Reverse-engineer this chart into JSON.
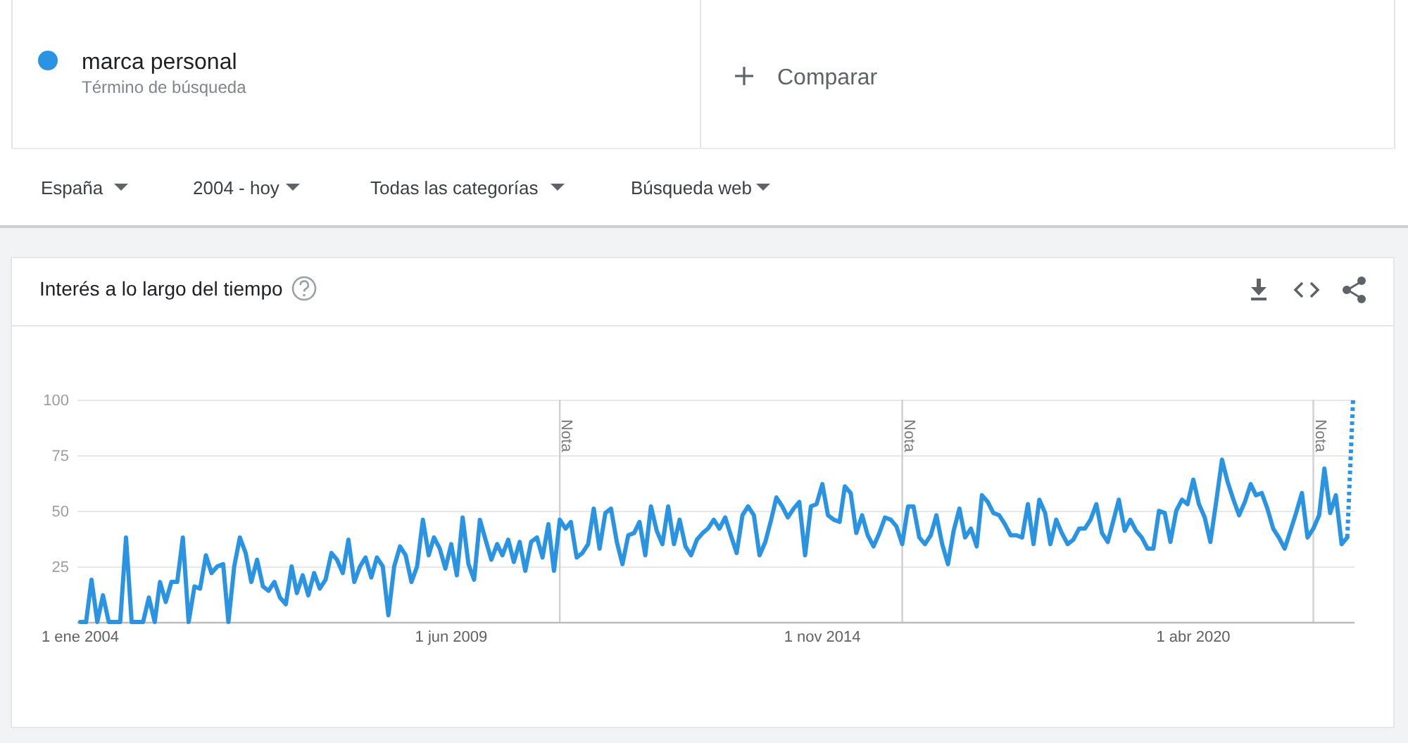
{
  "chart_data": {
    "type": "line",
    "title": "Interés a lo largo del tiempo",
    "annotations": [
      "Término de búsqueda",
      "Comparar",
      "España",
      "2004 - hoy",
      "Todas las categorías",
      "Búsqueda web"
    ],
    "x": [
      "2004-01",
      "2004-02",
      "2004-03",
      "2004-04",
      "2004-05",
      "2004-06",
      "2004-07",
      "2004-08",
      "2004-09",
      "2004-10",
      "2004-11",
      "2004-12",
      "2005-01",
      "2005-02",
      "2005-03",
      "2005-04",
      "2005-05",
      "2005-06",
      "2005-07",
      "2005-08",
      "2005-09",
      "2005-10",
      "2005-11",
      "2005-12",
      "2006-01",
      "2006-02",
      "2006-03",
      "2006-04",
      "2006-05",
      "2006-06",
      "2006-07",
      "2006-08",
      "2006-09",
      "2006-10",
      "2006-11",
      "2006-12",
      "2007-01",
      "2007-02",
      "2007-03",
      "2007-04",
      "2007-05",
      "2007-06",
      "2007-07",
      "2007-08",
      "2007-09",
      "2007-10",
      "2007-11",
      "2007-12",
      "2008-01",
      "2008-02",
      "2008-03",
      "2008-04",
      "2008-05",
      "2008-06",
      "2008-07",
      "2008-08",
      "2008-09",
      "2008-10",
      "2008-11",
      "2008-12",
      "2009-01",
      "2009-02",
      "2009-03",
      "2009-04",
      "2009-05",
      "2009-06",
      "2009-07",
      "2009-08",
      "2009-09",
      "2009-10",
      "2009-11",
      "2009-12",
      "2010-01",
      "2010-02",
      "2010-03",
      "2010-04",
      "2010-05",
      "2010-06",
      "2010-07",
      "2010-08",
      "2010-09",
      "2010-10",
      "2010-11",
      "2010-12",
      "2011-01",
      "2011-02",
      "2011-03",
      "2011-04",
      "2011-05",
      "2011-06",
      "2011-07",
      "2011-08",
      "2011-09",
      "2011-10",
      "2011-11",
      "2011-12",
      "2012-01",
      "2012-02",
      "2012-03",
      "2012-04",
      "2012-05",
      "2012-06",
      "2012-07",
      "2012-08",
      "2012-09",
      "2012-10",
      "2012-11",
      "2012-12",
      "2013-01",
      "2013-02",
      "2013-03",
      "2013-04",
      "2013-05",
      "2013-06",
      "2013-07",
      "2013-08",
      "2013-09",
      "2013-10",
      "2013-11",
      "2013-12",
      "2014-01",
      "2014-02",
      "2014-03",
      "2014-04",
      "2014-05",
      "2014-06",
      "2014-07",
      "2014-08",
      "2014-09",
      "2014-10",
      "2014-11",
      "2014-12",
      "2015-01",
      "2015-02",
      "2015-03",
      "2015-04",
      "2015-05",
      "2015-06",
      "2015-07",
      "2015-08",
      "2015-09",
      "2015-10",
      "2015-11",
      "2015-12",
      "2016-01",
      "2016-02",
      "2016-03",
      "2016-04",
      "2016-05",
      "2016-06",
      "2016-07",
      "2016-08",
      "2016-09",
      "2016-10",
      "2016-11",
      "2016-12",
      "2017-01",
      "2017-02",
      "2017-03",
      "2017-04",
      "2017-05",
      "2017-06",
      "2017-07",
      "2017-08",
      "2017-09",
      "2017-10",
      "2017-11",
      "2017-12",
      "2018-01",
      "2018-02",
      "2018-03",
      "2018-04",
      "2018-05",
      "2018-06",
      "2018-07",
      "2018-08",
      "2018-09",
      "2018-10",
      "2018-11",
      "2018-12",
      "2019-01",
      "2019-02",
      "2019-03",
      "2019-04",
      "2019-05",
      "2019-06",
      "2019-07",
      "2019-08",
      "2019-09",
      "2019-10",
      "2019-11",
      "2019-12",
      "2020-01",
      "2020-02",
      "2020-03",
      "2020-04",
      "2020-05",
      "2020-06",
      "2020-07",
      "2020-08",
      "2020-09",
      "2020-10",
      "2020-11",
      "2020-12",
      "2021-01",
      "2021-02",
      "2021-03",
      "2021-04",
      "2021-05",
      "2021-06",
      "2021-07",
      "2021-08",
      "2021-09",
      "2021-10",
      "2021-11",
      "2021-12",
      "2022-01",
      "2022-02",
      "2022-03",
      "2022-04",
      "2022-05",
      "2022-06",
      "2022-07"
    ],
    "series": [
      {
        "name": "marca personal",
        "color": "#2a93e2",
        "values": [
          0,
          0,
          19,
          0,
          12,
          0,
          0,
          0,
          38,
          0,
          0,
          0,
          11,
          0,
          18,
          9,
          18,
          18,
          38,
          0,
          16,
          15,
          30,
          22,
          25,
          26,
          0,
          25,
          38,
          31,
          18,
          28,
          16,
          14,
          18,
          11,
          8,
          25,
          13,
          21,
          12,
          22,
          15,
          19,
          31,
          28,
          22,
          37,
          18,
          25,
          29,
          20,
          29,
          25,
          3,
          25,
          34,
          30,
          18,
          25,
          46,
          30,
          38,
          33,
          24,
          35,
          21,
          47,
          26,
          19,
          46,
          37,
          28,
          35,
          30,
          37,
          27,
          36,
          23,
          36,
          38,
          29,
          44,
          23,
          46,
          42,
          45,
          29,
          31,
          35,
          51,
          33,
          49,
          51,
          36,
          26,
          39,
          40,
          45,
          30,
          52,
          41,
          35,
          52,
          35,
          46,
          34,
          30,
          37,
          40,
          42,
          46,
          42,
          47,
          39,
          31,
          48,
          52,
          48,
          30,
          36,
          46,
          56,
          52,
          47,
          51,
          54,
          30,
          52,
          53,
          62,
          48,
          46,
          45,
          61,
          58,
          40,
          48,
          39,
          34,
          40,
          47,
          46,
          43,
          35,
          52,
          52,
          38,
          35,
          39,
          48,
          35,
          26,
          41,
          51,
          38,
          42,
          34,
          57,
          54,
          49,
          48,
          44,
          39,
          39,
          38,
          53,
          35,
          55,
          49,
          35,
          46,
          40,
          35,
          37,
          42,
          42,
          46,
          53,
          40,
          36,
          46,
          55,
          41,
          46,
          41,
          38,
          33,
          33,
          50,
          49,
          36,
          50,
          55,
          53,
          64,
          53,
          47,
          36,
          54,
          73,
          63,
          55,
          48,
          54,
          62,
          57,
          58,
          51,
          42,
          38,
          33,
          41,
          49,
          58,
          38,
          42,
          48,
          69,
          49,
          57,
          35,
          38
        ]
      },
      {
        "type": "line",
        "color": "#2a93e2",
        "line_style": "dotted",
        "x": [
          "2022-07",
          "2022-08"
        ],
        "values": [
          38,
          100
        ]
      }
    ],
    "xlim": [
      "2004-01",
      "2022-08"
    ],
    "xticks": [
      {
        "value": "2004-01-01",
        "label": "1 ene 2004"
      },
      {
        "value": "2009-06-01",
        "label": "1 jun 2009"
      },
      {
        "value": "2014-11-01",
        "label": "1 nov 2014"
      },
      {
        "value": "2020-04-01",
        "label": "1 abr 2020"
      }
    ],
    "ylim": [
      0,
      100
    ],
    "yticks": [
      25,
      50,
      75,
      100
    ],
    "grid": "y",
    "legend": "top left",
    "ref_lines": [
      {
        "axis": "x",
        "value": "2011-01-01",
        "label": "Nota",
        "color": "#d0d0d0"
      },
      {
        "axis": "x",
        "value": "2016-01-01",
        "label": "Nota",
        "color": "#d0d0d0"
      },
      {
        "axis": "x",
        "value": "2022-01-01",
        "label": "Nota",
        "color": "#d0d0d0"
      }
    ]
  }
}
